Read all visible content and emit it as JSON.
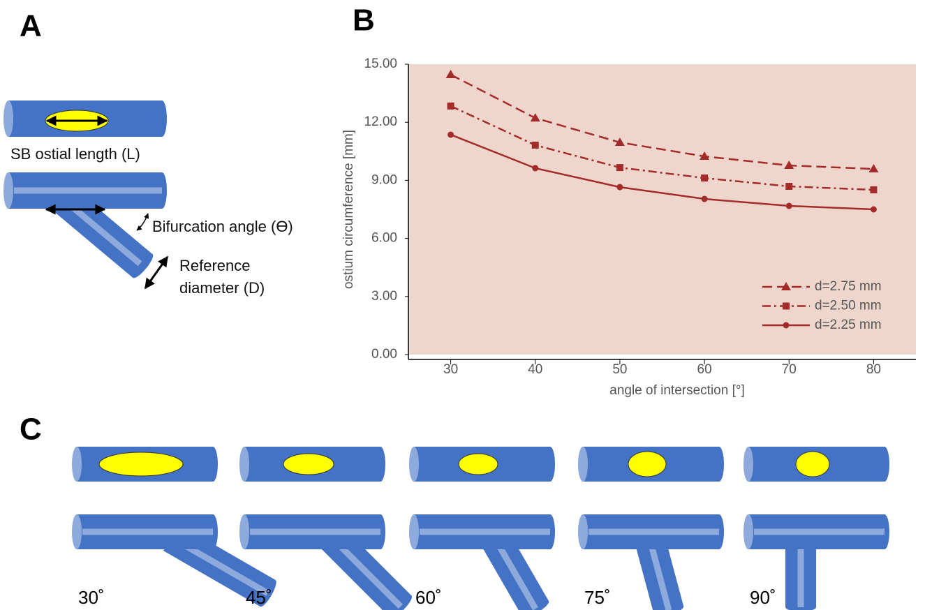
{
  "panel_a": {
    "label": "A",
    "ostial_length": "SB ostial length (L)",
    "angle": "Bifurcation angle (ϴ)",
    "diameter_1": "Reference",
    "diameter_2": "diameter (D)"
  },
  "panel_b": {
    "label": "B"
  },
  "panel_c": {
    "label": "C",
    "angles": [
      "30˚",
      "45˚",
      "60˚",
      "75˚",
      "90˚"
    ]
  },
  "chart_data": {
    "type": "line",
    "x_label": "angle of intersection [°]",
    "y_label": "ostium circumference [mm]",
    "x": [
      30,
      40,
      50,
      60,
      70,
      80
    ],
    "series": [
      {
        "name": "d=2.75 mm",
        "color": "#a32c2a",
        "marker": "triangle",
        "dash": "dashed",
        "values": [
          14.46,
          12.22,
          10.96,
          10.24,
          9.77,
          9.59
        ]
      },
      {
        "name": "d=2.50 mm",
        "color": "#a32c2a",
        "marker": "square",
        "dash": "dash-dot",
        "values": [
          12.84,
          10.82,
          9.66,
          9.12,
          8.69,
          8.51
        ]
      },
      {
        "name": "d=2.25 mm",
        "color": "#a32c2a",
        "marker": "circle",
        "dash": "solid",
        "values": [
          11.36,
          9.63,
          8.65,
          8.04,
          7.68,
          7.5
        ]
      }
    ],
    "xlim": [
      25,
      85
    ],
    "xticks": [
      30,
      40,
      50,
      60,
      70,
      80
    ],
    "ylim": [
      0,
      15
    ],
    "yticks": [
      {
        "value": 0,
        "label": "0.00"
      },
      {
        "value": 3,
        "label": "3.00"
      },
      {
        "value": 6,
        "label": "6.00"
      },
      {
        "value": 9,
        "label": "9.00"
      },
      {
        "value": 12,
        "label": "12.00"
      },
      {
        "value": 15,
        "label": "15.00"
      }
    ],
    "background": "#efd6cd",
    "legend": "lower right"
  }
}
